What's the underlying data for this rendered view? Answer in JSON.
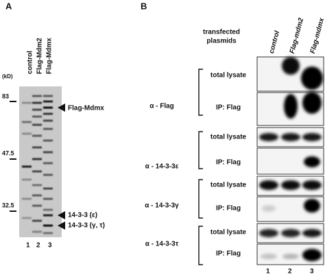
{
  "panel_a": {
    "label": "A",
    "unit": "(kD)",
    "lanes": [
      "control",
      "Flag-Mdm2",
      "Flag-Mdmx"
    ],
    "markers": [
      "83",
      "47.5",
      "32.5"
    ],
    "annotations": [
      "Flag-Mdmx",
      "14-3-3 (ε)",
      "14-3-3 (γ, τ)"
    ],
    "lane_numbers": [
      "1",
      "2",
      "3"
    ]
  },
  "panel_b": {
    "label": "B",
    "header": [
      "transfected",
      "plasmids"
    ],
    "lanes": [
      "control",
      "Flag-mdm2",
      "Flag-mdmx"
    ],
    "groups": [
      {
        "antibody": "α - Flag",
        "rows": [
          "total lysate",
          "IP: Flag"
        ]
      },
      {
        "antibody": "α - 14-3-3ε",
        "rows": [
          "total lysate",
          "IP: Flag"
        ]
      },
      {
        "antibody": "α - 14-3-3γ",
        "rows": [
          "total lysate",
          "IP: Flag"
        ]
      },
      {
        "antibody": "α - 14-3-3τ",
        "rows": [
          "total lysate",
          "IP: Flag"
        ]
      }
    ],
    "lane_numbers": [
      "1",
      "2",
      "3"
    ]
  }
}
